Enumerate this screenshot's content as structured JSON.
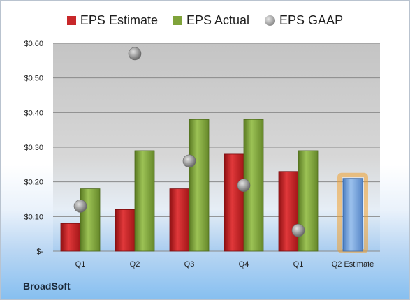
{
  "company": "BroadSoft",
  "legend": [
    {
      "label": "EPS Estimate",
      "color": "#c8282a",
      "shape": "square"
    },
    {
      "label": "EPS Actual",
      "color": "#7fa33a",
      "shape": "square"
    },
    {
      "label": "EPS GAAP",
      "color": "#9a9a9a",
      "shape": "circle"
    }
  ],
  "chart_data": {
    "type": "bar",
    "categories": [
      "Q1",
      "Q2",
      "Q3",
      "Q4",
      "Q1",
      "Q2 Estimate"
    ],
    "ylim": [
      0,
      0.6
    ],
    "ytick_values": [
      0,
      0.1,
      0.2,
      0.3,
      0.4,
      0.5,
      0.6
    ],
    "ytick_labels": [
      "$-",
      "$0.10",
      "$0.20",
      "$0.30",
      "$0.40",
      "$0.50",
      "$0.60"
    ],
    "grid": true,
    "legend_position": "top",
    "series": [
      {
        "name": "EPS Estimate",
        "kind": "bar",
        "color": "#c8282a",
        "values": [
          0.08,
          0.12,
          0.18,
          0.28,
          0.23,
          null
        ]
      },
      {
        "name": "EPS Actual",
        "kind": "bar",
        "color": "#7fa33a",
        "values": [
          0.18,
          0.29,
          0.38,
          0.38,
          0.29,
          null
        ]
      },
      {
        "name": "EPS GAAP",
        "kind": "marker",
        "color": "#9a9a9a",
        "values": [
          0.13,
          0.57,
          0.26,
          0.19,
          0.06,
          null
        ]
      },
      {
        "name": "Q2 Estimate",
        "kind": "bar",
        "color": "#6f9fd8",
        "highlight": "#f0a030",
        "values": [
          null,
          null,
          null,
          null,
          null,
          0.21
        ]
      }
    ]
  }
}
